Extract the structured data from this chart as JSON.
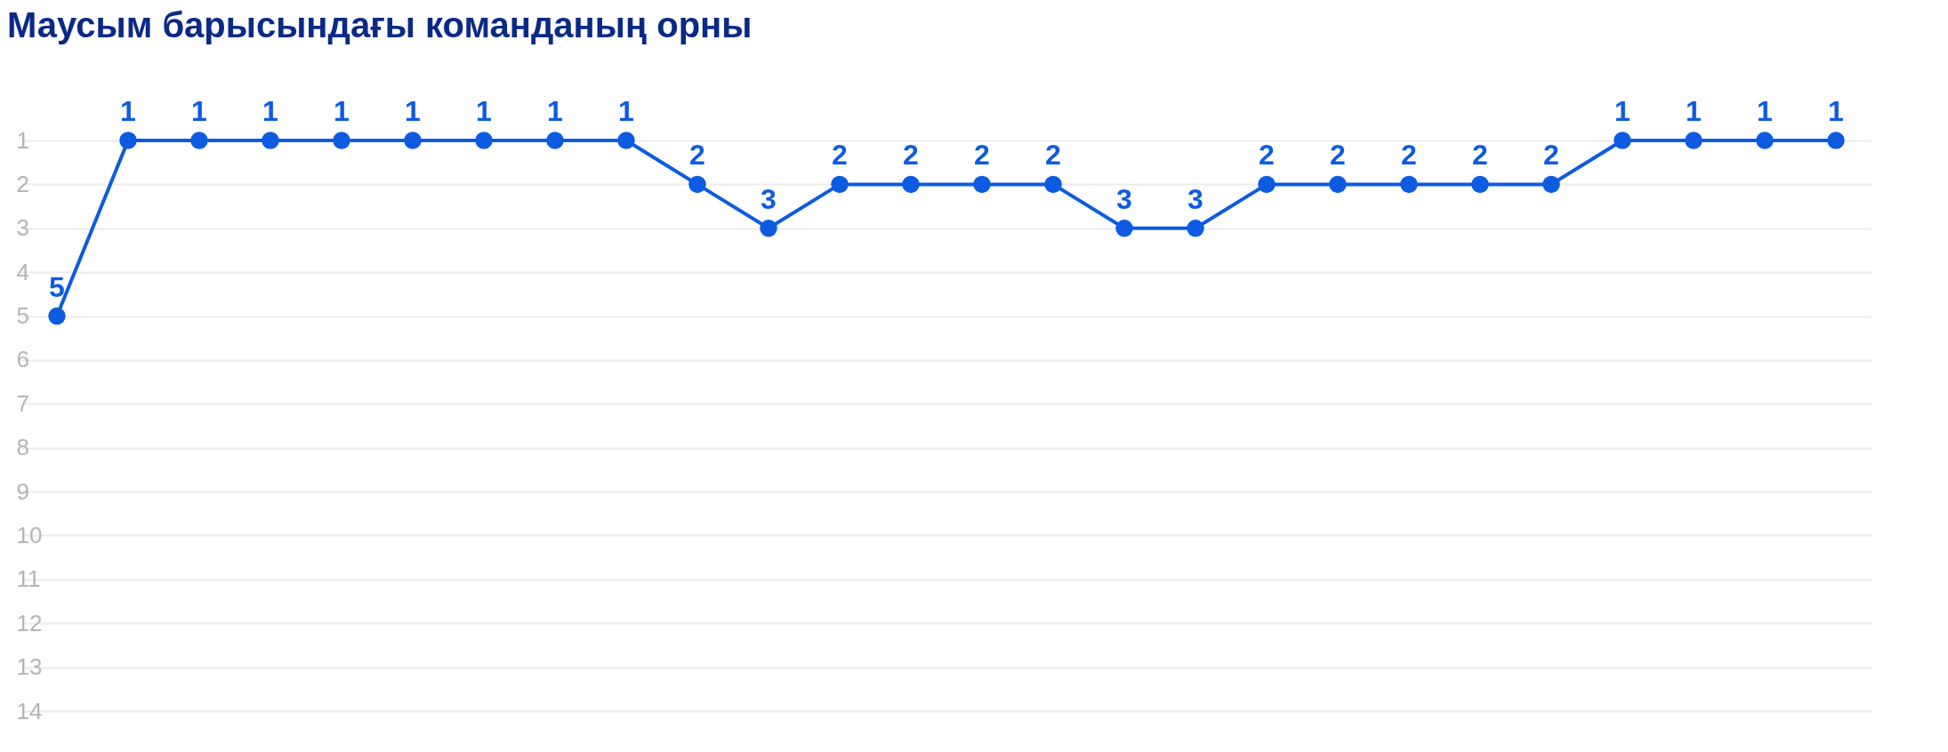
{
  "chart_data": {
    "type": "line",
    "title": "Маусым барысындағы команданың орны",
    "categories": [
      null,
      null,
      null,
      null,
      null,
      null,
      null,
      null,
      null,
      null,
      null,
      null,
      null,
      null,
      null,
      null,
      null,
      null,
      null,
      null,
      null,
      null,
      null,
      null,
      null,
      null
    ],
    "series": [
      {
        "color": "#0d5be1",
        "values": [
          5,
          1,
          1,
          1,
          1,
          1,
          1,
          1,
          1,
          2,
          3,
          2,
          2,
          2,
          2,
          3,
          3,
          2,
          2,
          2,
          2,
          2,
          1,
          1,
          1,
          1
        ]
      }
    ],
    "ylim": [
      14,
      1
    ],
    "yticks": [
      1,
      2,
      3,
      4,
      5,
      6,
      7,
      8,
      9,
      10,
      11,
      12,
      13,
      14
    ],
    "grid": "y",
    "tick_labels": "y",
    "marker": "circle",
    "line_style": "solid",
    "data_labels": true
  }
}
